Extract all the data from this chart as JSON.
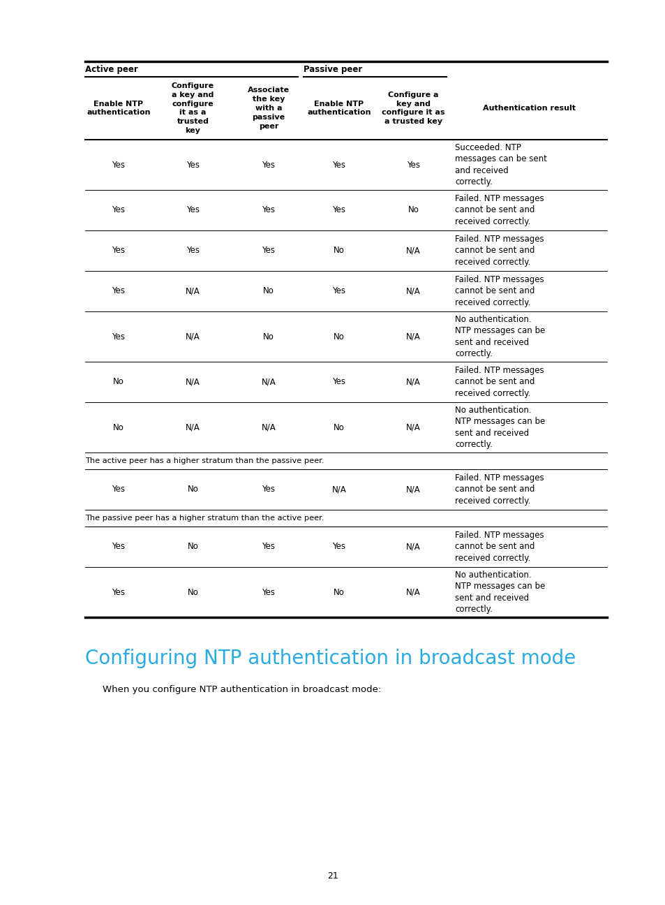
{
  "bg_color": "#ffffff",
  "title_color": "#29abe2",
  "title_text": "Configuring NTP authentication in broadcast mode",
  "title_fontsize": 20,
  "body_text": "When you configure NTP authentication in broadcast mode:",
  "body_fontsize": 9.5,
  "page_number": "21",
  "table": {
    "col_headers": [
      "Enable NTP\nauthentication",
      "Configure\na key and\nconfigure\nit as a\ntrusted\nkey",
      "Associate\nthe key\nwith a\npassive\npeer",
      "Enable NTP\nauthentication",
      "Configure a\nkey and\nconfigure it as\na trusted key",
      "Authentication result"
    ],
    "rows": [
      {
        "type": "data",
        "cells": [
          "Yes",
          "Yes",
          "Yes",
          "Yes",
          "Yes",
          "Succeeded. NTP\nmessages can be sent\nand received\ncorrectly."
        ]
      },
      {
        "type": "data",
        "cells": [
          "Yes",
          "Yes",
          "Yes",
          "Yes",
          "No",
          "Failed. NTP messages\ncannot be sent and\nreceived correctly."
        ]
      },
      {
        "type": "data",
        "cells": [
          "Yes",
          "Yes",
          "Yes",
          "No",
          "N/A",
          "Failed. NTP messages\ncannot be sent and\nreceived correctly."
        ]
      },
      {
        "type": "data",
        "cells": [
          "Yes",
          "N/A",
          "No",
          "Yes",
          "N/A",
          "Failed. NTP messages\ncannot be sent and\nreceived correctly."
        ]
      },
      {
        "type": "data",
        "cells": [
          "Yes",
          "N/A",
          "No",
          "No",
          "N/A",
          "No authentication.\nNTP messages can be\nsent and received\ncorrectly."
        ]
      },
      {
        "type": "data",
        "cells": [
          "No",
          "N/A",
          "N/A",
          "Yes",
          "N/A",
          "Failed. NTP messages\ncannot be sent and\nreceived correctly."
        ]
      },
      {
        "type": "data",
        "cells": [
          "No",
          "N/A",
          "N/A",
          "No",
          "N/A",
          "No authentication.\nNTP messages can be\nsent and received\ncorrectly."
        ]
      },
      {
        "type": "separator",
        "text": "The active peer has a higher stratum than the passive peer."
      },
      {
        "type": "data",
        "cells": [
          "Yes",
          "No",
          "Yes",
          "N/A",
          "N/A",
          "Failed. NTP messages\ncannot be sent and\nreceived correctly."
        ]
      },
      {
        "type": "separator",
        "text": "The passive peer has a higher stratum than the active peer."
      },
      {
        "type": "data",
        "cells": [
          "Yes",
          "No",
          "Yes",
          "Yes",
          "N/A",
          "Failed. NTP messages\ncannot be sent and\nreceived correctly."
        ]
      },
      {
        "type": "data",
        "cells": [
          "Yes",
          "No",
          "Yes",
          "No",
          "N/A",
          "No authentication.\nNTP messages can be\nsent and received\ncorrectly."
        ]
      }
    ]
  }
}
